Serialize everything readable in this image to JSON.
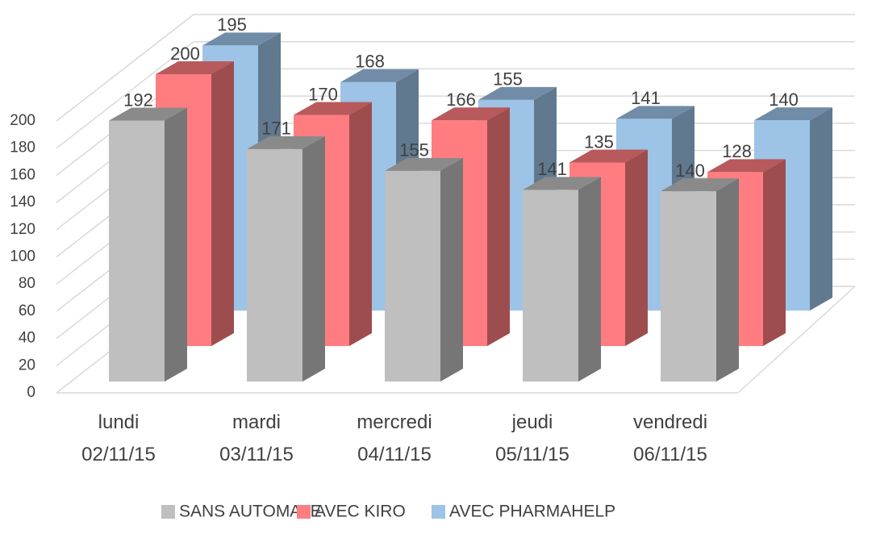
{
  "chart_data": {
    "type": "bar3d",
    "categories": [
      "lundi 02/11/15",
      "mardi 03/11/15",
      "mercredi 04/11/15",
      "jeudi 05/11/15",
      "vendredi 06/11/15"
    ],
    "series": [
      {
        "name": "SANS AUTOMATE",
        "color": "#bfbfbf",
        "values": [
          192,
          171,
          155,
          141,
          140
        ]
      },
      {
        "name": "AVEC KIRO",
        "color": "#ff7c80",
        "values": [
          200,
          170,
          166,
          135,
          128
        ]
      },
      {
        "name": "AVEC PHARMAHELP",
        "color": "#9dc3e6",
        "values": [
          195,
          168,
          155,
          141,
          140
        ]
      }
    ],
    "ylim": [
      0,
      200
    ],
    "yticks": [
      0,
      20,
      40,
      60,
      80,
      100,
      120,
      140,
      160,
      180,
      200
    ],
    "grid": true,
    "legend": "bottom"
  }
}
